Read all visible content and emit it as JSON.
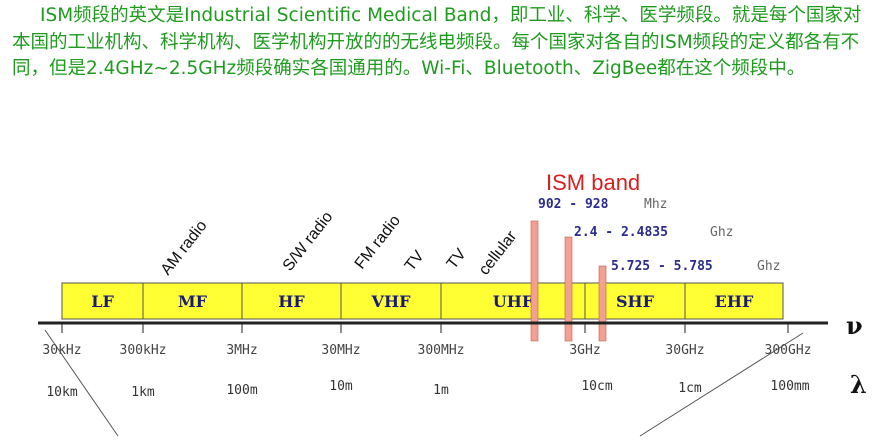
{
  "intro_text": "ISM频段的英文是Industrial Scientific Medical Band，即工业、科学、医学频段。就是每个国家对本国的工业机构、科学机构、医学机构开放的的无线电频段。每个国家对各自的ISM频段的定义都各有不同，但是2.4GHz~2.5GHz频段确实各国通用的。Wi-Fi、Bluetooth、ZigBee都在这个频段中。",
  "bands": [
    "LF",
    "MF",
    "HF",
    "VHF",
    "UHF",
    "SHF",
    "EHF"
  ],
  "services": [
    "AM radio",
    "S/W radio",
    "FM radio",
    "TV",
    "TV",
    "cellular"
  ],
  "frequency_ticks": [
    "30kHz",
    "300kHz",
    "3MHz",
    "30MHz",
    "300MHz",
    "3GHz",
    "30GHz",
    "300GHz"
  ],
  "wavelength_ticks": [
    "10km",
    "1km",
    "100m",
    "10m",
    "1m",
    "10cm",
    "1cm",
    "100mm"
  ],
  "ism": {
    "title": "ISM band",
    "ranges": [
      {
        "range": "902 - 928",
        "unit": "Mhz"
      },
      {
        "range": "2.4 - 2.4835",
        "unit": "Ghz"
      },
      {
        "range": "5.725 - 5.785",
        "unit": "Ghz"
      }
    ]
  },
  "axis_symbols": {
    "frequency": "ν",
    "wavelength": "λ"
  },
  "colors": {
    "intro_text": "#1f9b1f",
    "band_fill": "#ffff33",
    "ism_bar": "#f4a090",
    "ism_title": "#d62020"
  }
}
